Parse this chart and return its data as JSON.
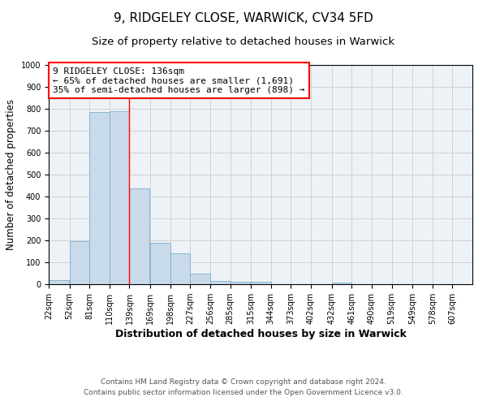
{
  "title": "9, RIDGELEY CLOSE, WARWICK, CV34 5FD",
  "subtitle": "Size of property relative to detached houses in Warwick",
  "xlabel": "Distribution of detached houses by size in Warwick",
  "ylabel": "Number of detached properties",
  "bar_left_edges": [
    22,
    52,
    81,
    110,
    139,
    169,
    198,
    227,
    256,
    285,
    315,
    344,
    373,
    402,
    432,
    461,
    490,
    519,
    549,
    578
  ],
  "bar_heights": [
    18,
    195,
    785,
    790,
    437,
    190,
    140,
    48,
    15,
    12,
    10,
    0,
    0,
    0,
    8,
    0,
    0,
    0,
    0,
    0
  ],
  "bin_width": 29,
  "bar_color": "#c9daea",
  "bar_edge_color": "#7ab0cc",
  "vline_x": 139,
  "vline_color": "red",
  "annotation_box_text": "9 RIDGELEY CLOSE: 136sqm\n← 65% of detached houses are smaller (1,691)\n35% of semi-detached houses are larger (898) →",
  "annotation_box_color": "red",
  "annotation_box_facecolor": "white",
  "tick_labels": [
    "22sqm",
    "52sqm",
    "81sqm",
    "110sqm",
    "139sqm",
    "169sqm",
    "198sqm",
    "227sqm",
    "256sqm",
    "285sqm",
    "315sqm",
    "344sqm",
    "373sqm",
    "402sqm",
    "432sqm",
    "461sqm",
    "490sqm",
    "519sqm",
    "549sqm",
    "578sqm",
    "607sqm"
  ],
  "ylim": [
    0,
    1000
  ],
  "yticks": [
    0,
    100,
    200,
    300,
    400,
    500,
    600,
    700,
    800,
    900,
    1000
  ],
  "grid_color": "#cccccc",
  "bg_color": "#edf2f7",
  "footer_line1": "Contains HM Land Registry data © Crown copyright and database right 2024.",
  "footer_line2": "Contains public sector information licensed under the Open Government Licence v3.0.",
  "title_fontsize": 11,
  "subtitle_fontsize": 9.5,
  "xlabel_fontsize": 9,
  "ylabel_fontsize": 8.5,
  "tick_fontsize": 7,
  "annotation_fontsize": 8,
  "footer_fontsize": 6.5
}
